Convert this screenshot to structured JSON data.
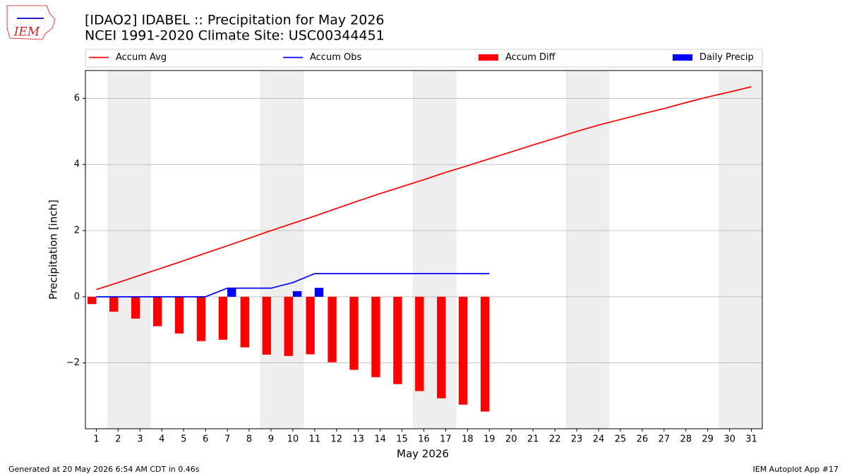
{
  "chart_data": {
    "type": "combo",
    "title": "[IDAO2] IDABEL :: Precipitation for May 2026",
    "subtitle": "NCEI 1991-2020 Climate Site: USC00344451",
    "xlabel": "May 2026",
    "ylabel": "Precipitation [inch]",
    "x": [
      1,
      2,
      3,
      4,
      5,
      6,
      7,
      8,
      9,
      10,
      11,
      12,
      13,
      14,
      15,
      16,
      17,
      18,
      19,
      20,
      21,
      22,
      23,
      24,
      25,
      26,
      27,
      28,
      29,
      30,
      31
    ],
    "xlim": [
      0.5,
      31.5
    ],
    "xticks": [
      1,
      2,
      3,
      4,
      5,
      6,
      7,
      8,
      9,
      10,
      11,
      12,
      13,
      14,
      15,
      16,
      17,
      18,
      19,
      20,
      21,
      22,
      23,
      24,
      25,
      26,
      27,
      28,
      29,
      30,
      31
    ],
    "ylim": [
      -3.99,
      6.84
    ],
    "yticks": [
      {
        "value": -2,
        "label": "−2"
      },
      0,
      2,
      4,
      6
    ],
    "grid": true,
    "shaded_ranges": [
      [
        1.5,
        3.5
      ],
      [
        8.5,
        10.5
      ],
      [
        15.5,
        17.5
      ],
      [
        22.5,
        24.5
      ],
      [
        29.5,
        31.5
      ]
    ],
    "shade_color": "#eeeeee",
    "series": [
      {
        "name": "Accum Avg",
        "kind": "line",
        "color": "#ff0000",
        "values": [
          0.22,
          0.43,
          0.65,
          0.87,
          1.09,
          1.32,
          1.54,
          1.77,
          2.0,
          2.22,
          2.44,
          2.67,
          2.9,
          3.12,
          3.33,
          3.54,
          3.76,
          3.96,
          4.17,
          4.38,
          4.59,
          4.79,
          5.0,
          5.19,
          5.36,
          5.53,
          5.69,
          5.87,
          6.04,
          6.19,
          6.35
        ]
      },
      {
        "name": "Accum Obs",
        "kind": "line",
        "color": "#0000ff",
        "values": [
          0,
          0,
          0,
          0,
          0,
          0,
          0.26,
          0.26,
          0.26,
          0.43,
          0.7,
          0.7,
          0.7,
          0.7,
          0.7,
          0.7,
          0.7,
          0.7,
          0.7,
          null,
          null,
          null,
          null,
          null,
          null,
          null,
          null,
          null,
          null,
          null,
          null
        ]
      },
      {
        "name": "Accum Diff",
        "kind": "bar",
        "offset": -0.2,
        "color": "#ff0000",
        "values": [
          -0.22,
          -0.45,
          -0.66,
          -0.89,
          -1.11,
          -1.34,
          -1.3,
          -1.53,
          -1.75,
          -1.79,
          -1.74,
          -1.98,
          -2.21,
          -2.43,
          -2.64,
          -2.85,
          -3.07,
          -3.26,
          -3.47,
          null,
          null,
          null,
          null,
          null,
          null,
          null,
          null,
          null,
          null,
          null,
          null
        ]
      },
      {
        "name": "Daily Precip",
        "kind": "bar",
        "offset": 0.2,
        "color": "#0000ff",
        "values": [
          0,
          0,
          0,
          0,
          0,
          0,
          0.26,
          0,
          0,
          0.17,
          0.27,
          0,
          0,
          0,
          0,
          0,
          0,
          0,
          0,
          null,
          null,
          null,
          null,
          null,
          null,
          null,
          null,
          null,
          null,
          null,
          null
        ]
      }
    ]
  },
  "logo": "IEM",
  "footer_left": "Generated at 20 May 2026 6:54 AM CDT in 0.46s",
  "footer_right": "IEM Autoplot App #17"
}
